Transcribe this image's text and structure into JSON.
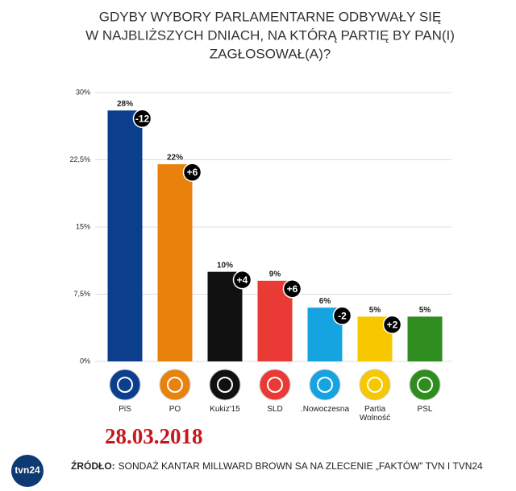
{
  "chart_data": {
    "type": "bar",
    "title": [
      "GDYBY WYBORY PARLAMENTARNE ODBYWAŁY SIĘ",
      "W NAJBLIŻSZYCH DNIACH, NA KTÓRĄ PARTIĘ BY PAN(I)",
      "ZAGŁOSOWAŁ(A)?"
    ],
    "categories": [
      "PiS",
      "PO",
      "Kukiz'15",
      "SLD",
      ".Nowoczesna",
      "Partia Wolność",
      "PSL"
    ],
    "values": [
      28,
      22,
      10,
      9,
      6,
      5,
      5
    ],
    "value_labels": [
      "28%",
      "22%",
      "10%",
      "9%",
      "6%",
      "5%",
      "5%"
    ],
    "colors": [
      "#0b3f8d",
      "#e8820c",
      "#111111",
      "#ea3a35",
      "#16a4e0",
      "#f7c800",
      "#2f8c1f"
    ],
    "changes": [
      -12,
      6,
      4,
      6,
      -2,
      2,
      null
    ],
    "change_labels": [
      "-12",
      "+6",
      "+4",
      "+6",
      "-2",
      "+2",
      null
    ],
    "ylim": [
      0,
      30
    ],
    "yticks": [
      {
        "value": 0,
        "label": "0%"
      },
      {
        "value": 7.5,
        "label": "7,5%"
      },
      {
        "value": 15,
        "label": "15%"
      },
      {
        "value": 22.5,
        "label": "22,5%"
      },
      {
        "value": 30,
        "label": "30%"
      }
    ],
    "grid": true,
    "date": "28.03.2018",
    "source_label": "ŹRÓDŁO:",
    "source": "SONDAŻ KANTAR MILLWARD BROWN SA NA ZLECENIE „FAKTÓW” TVN I TVN24",
    "logo": "tvn24"
  }
}
